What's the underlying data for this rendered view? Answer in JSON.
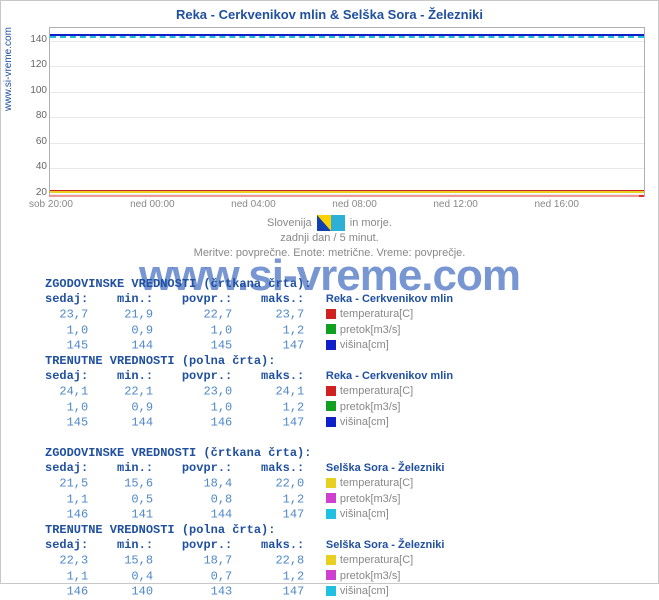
{
  "title": "Reka - Cerkvenikov mlin & Selška Sora - Železniki",
  "ylabel_text": "www.si-vreme.com",
  "watermark": "www.si-vreme.com",
  "chart": {
    "type": "line",
    "background_color": "#ffffff",
    "grid_color": "#e8e8e8",
    "ymin": 20,
    "ymax": 150,
    "yticks": [
      20,
      40,
      60,
      80,
      100,
      120,
      140
    ],
    "xticks": [
      "sob 20:00",
      "ned 00:00",
      "ned 04:00",
      "ned 08:00",
      "ned 12:00",
      "ned 16:00"
    ],
    "series": [
      {
        "name": "visina-reka",
        "color": "#1020c8",
        "y": 145,
        "dashed": false
      },
      {
        "name": "visina-sora",
        "color": "#20c0e0",
        "y": 144,
        "dashed": true
      },
      {
        "name": "temp-reka",
        "color": "#d02020",
        "y": 23,
        "dashed": false
      },
      {
        "name": "temp-sora",
        "color": "#e8d020",
        "y": 22,
        "dashed": false
      }
    ],
    "axis_arrow_color": "#e03030"
  },
  "caption": {
    "line1a": "Slovenija",
    "line1b": "in morje.",
    "line2": "zadnji dan / 5 minut.",
    "line3": "Meritve: povprečne. Enote: metrične. Vreme: povprečje."
  },
  "sections": [
    {
      "header": "ZGODOVINSKE VREDNOSTI (črtkana črta):",
      "station": "Reka - Cerkvenikov mlin",
      "cols": [
        "sedaj:",
        "min.:",
        "povpr.:",
        "maks.:"
      ],
      "rows": [
        {
          "vals": [
            "23,7",
            "21,9",
            "22,7",
            "23,7"
          ],
          "swatch": "#d02020",
          "label": "temperatura[C]"
        },
        {
          "vals": [
            "1,0",
            "0,9",
            "1,0",
            "1,2"
          ],
          "swatch": "#10a020",
          "label": "pretok[m3/s]"
        },
        {
          "vals": [
            "145",
            "144",
            "145",
            "147"
          ],
          "swatch": "#1020c8",
          "label": "višina[cm]"
        }
      ]
    },
    {
      "header": "TRENUTNE VREDNOSTI (polna črta):",
      "station": "Reka - Cerkvenikov mlin",
      "cols": [
        "sedaj:",
        "min.:",
        "povpr.:",
        "maks.:"
      ],
      "rows": [
        {
          "vals": [
            "24,1",
            "22,1",
            "23,0",
            "24,1"
          ],
          "swatch": "#d02020",
          "label": "temperatura[C]"
        },
        {
          "vals": [
            "1,0",
            "0,9",
            "1,0",
            "1,2"
          ],
          "swatch": "#10a020",
          "label": "pretok[m3/s]"
        },
        {
          "vals": [
            "145",
            "144",
            "146",
            "147"
          ],
          "swatch": "#1020c8",
          "label": "višina[cm]"
        }
      ]
    },
    {
      "header": "ZGODOVINSKE VREDNOSTI (črtkana črta):",
      "station": "Selška Sora - Železniki",
      "cols": [
        "sedaj:",
        "min.:",
        "povpr.:",
        "maks.:"
      ],
      "rows": [
        {
          "vals": [
            "21,5",
            "15,6",
            "18,4",
            "22,0"
          ],
          "swatch": "#e8d020",
          "label": "temperatura[C]"
        },
        {
          "vals": [
            "1,1",
            "0,5",
            "0,8",
            "1,2"
          ],
          "swatch": "#d040d0",
          "label": "pretok[m3/s]"
        },
        {
          "vals": [
            "146",
            "141",
            "144",
            "147"
          ],
          "swatch": "#20c0e0",
          "label": "višina[cm]"
        }
      ]
    },
    {
      "header": "TRENUTNE VREDNOSTI (polna črta):",
      "station": "Selška Sora - Železniki",
      "cols": [
        "sedaj:",
        "min.:",
        "povpr.:",
        "maks.:"
      ],
      "rows": [
        {
          "vals": [
            "22,3",
            "15,8",
            "18,7",
            "22,8"
          ],
          "swatch": "#e8d020",
          "label": "temperatura[C]"
        },
        {
          "vals": [
            "1,1",
            "0,4",
            "0,7",
            "1,2"
          ],
          "swatch": "#d040d0",
          "label": "pretok[m3/s]"
        },
        {
          "vals": [
            "146",
            "140",
            "143",
            "147"
          ],
          "swatch": "#20c0e0",
          "label": "višina[cm]"
        }
      ]
    }
  ]
}
